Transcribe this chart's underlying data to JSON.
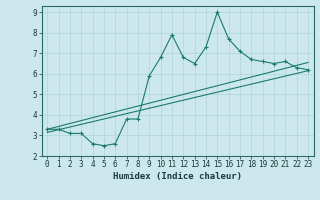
{
  "xlabel": "Humidex (Indice chaleur)",
  "ylabel": "",
  "background_color": "#cce8ec",
  "line_color": "#1a7a6e",
  "grid_color": "#aed4d8",
  "xlim": [
    -0.5,
    23.5
  ],
  "ylim": [
    2,
    9.3
  ],
  "yticks": [
    2,
    3,
    4,
    5,
    6,
    7,
    8,
    9
  ],
  "xticks": [
    0,
    1,
    2,
    3,
    4,
    5,
    6,
    7,
    8,
    9,
    10,
    11,
    12,
    13,
    14,
    15,
    16,
    17,
    18,
    19,
    20,
    21,
    22,
    23
  ],
  "line1_x": [
    0,
    1,
    2,
    3,
    4,
    5,
    6,
    7,
    8,
    9,
    10,
    11,
    12,
    13,
    14,
    15,
    16,
    17,
    18,
    19,
    20,
    21,
    22,
    23
  ],
  "line1_y": [
    3.3,
    3.3,
    3.1,
    3.1,
    2.6,
    2.5,
    2.6,
    3.8,
    3.8,
    5.9,
    6.8,
    7.9,
    6.8,
    6.5,
    7.3,
    9.0,
    7.7,
    7.1,
    6.7,
    6.6,
    6.5,
    6.6,
    6.3,
    6.2
  ],
  "line2_x": [
    0,
    23
  ],
  "line2_y": [
    3.15,
    6.15
  ],
  "line3_x": [
    0,
    23
  ],
  "line3_y": [
    3.3,
    6.55
  ],
  "marker": "+"
}
